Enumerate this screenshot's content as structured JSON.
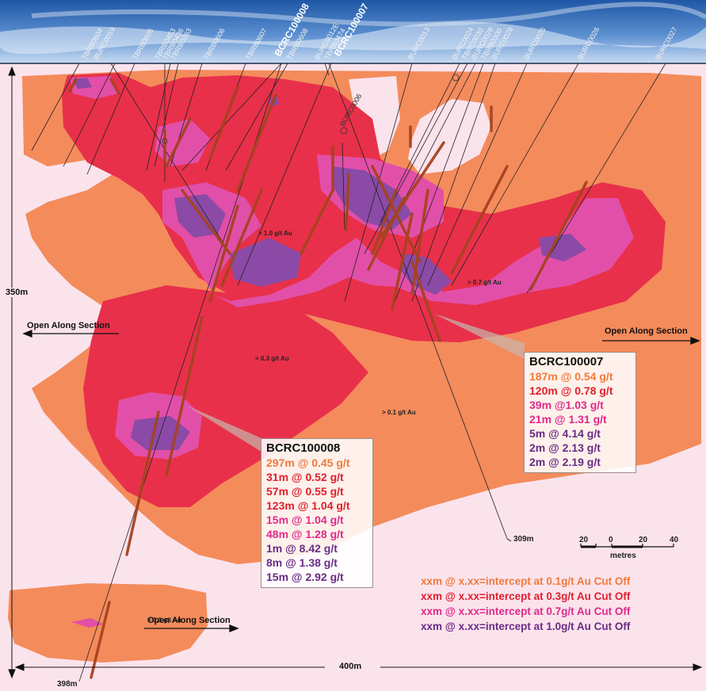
{
  "colors": {
    "background": "#fbe3ec",
    "sky": "#2d68b3",
    "grade_0_1": "#f48b5b",
    "grade_0_3": "#e8304a",
    "grade_0_7": "#e24fa8",
    "grade_1_0": "#8a4aa6",
    "drill_trace": "#a5431f"
  },
  "drillholes": [
    "TBRB0604",
    "BURC0019",
    "TBRB0605",
    "TBRB0453",
    "TBRB0436",
    "TBRB0263",
    "TBRB0606",
    "TBRB0607",
    "BCRC100008",
    "TBRB0608",
    "BURC0012E",
    "TBRB0474",
    "BCRC100007",
    "BURC0013",
    "BURC0024",
    "TBRC0030",
    "BURC0028",
    "TBRB0300",
    "BURC0029",
    "BURC0025",
    "BURC0026",
    "BURC0027",
    "BURC0006"
  ],
  "zones": {
    "z1": "> 1.0 g/t Au",
    "z2": "> 0.7 g/t Au",
    "z3": "> 0.3 g/t Au",
    "z4": "> 0.1 g/t Au",
    "z5": "> 0.1 g/t Au"
  },
  "annotations": {
    "open_left": "Open Along Section",
    "open_right": "Open Along Section",
    "open_bottom": "Open Along Section",
    "height": "350m",
    "width": "400m",
    "depth_bottom": "398m",
    "depth_mid": "309m"
  },
  "scale": {
    "ticks": [
      "20",
      "0",
      "20",
      "40"
    ],
    "unit": "metres"
  },
  "callouts": {
    "bcrc100007": {
      "title": "BCRC100007",
      "rows": [
        {
          "text": "187m @ 0.54 g/t",
          "color": "#f07a3c"
        },
        {
          "text": "120m @ 0.78 g/t",
          "color": "#e0202e"
        },
        {
          "text": "39m @1.03 g/t",
          "color": "#df2a8a"
        },
        {
          "text": "21m @ 1.31 g/t",
          "color": "#df2a8a"
        },
        {
          "text": "5m @ 4.14 g/t",
          "color": "#6a2c86"
        },
        {
          "text": "2m @ 2.13 g/t",
          "color": "#6a2c86"
        },
        {
          "text": "2m @ 2.19 g/t",
          "color": "#6a2c86"
        }
      ]
    },
    "bcrc100008": {
      "title": "BCRC100008",
      "rows": [
        {
          "text": "297m @ 0.45 g/t",
          "color": "#f07a3c"
        },
        {
          "text": "31m @ 0.52 g/t",
          "color": "#e0202e"
        },
        {
          "text": "57m @ 0.55 g/t",
          "color": "#e0202e"
        },
        {
          "text": "123m @ 1.04 g/t",
          "color": "#e0202e"
        },
        {
          "text": "15m @ 1.04 g/t",
          "color": "#df2a8a"
        },
        {
          "text": "48m @ 1.28 g/t",
          "color": "#df2a8a"
        },
        {
          "text": "1m @ 8.42 g/t",
          "color": "#6a2c86"
        },
        {
          "text": "8m @ 1.38 g/t",
          "color": "#6a2c86"
        },
        {
          "text": "15m @ 2.92 g/t",
          "color": "#6a2c86"
        }
      ]
    }
  },
  "legend": [
    {
      "text": "xxm @ x.xx=intercept at 0.1g/t Au Cut Off",
      "color": "#f07a3c"
    },
    {
      "text": "xxm @ x.xx=intercept at 0.3g/t Au Cut Off",
      "color": "#e0202e"
    },
    {
      "text": "xxm @ x.xx=intercept at 0.7g/t Au Cut Off",
      "color": "#df2a8a"
    },
    {
      "text": "xxm @ x.xx=intercept at 1.0g/t Au Cut Off",
      "color": "#6a2c86"
    }
  ]
}
